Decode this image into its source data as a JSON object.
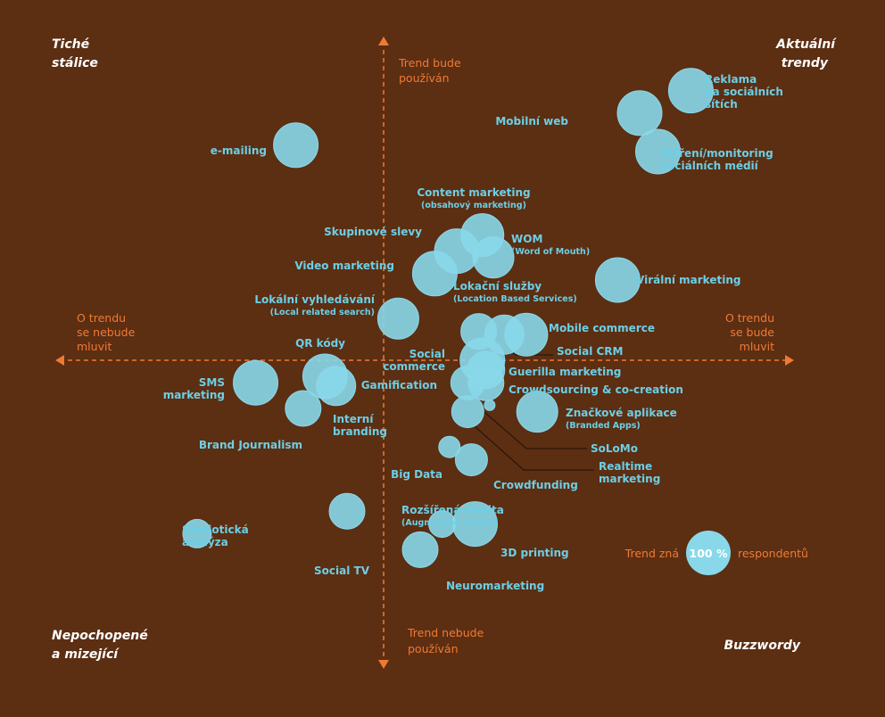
{
  "colors": {
    "background": "#5c2e12",
    "bubble": "#88d8ea",
    "label": "#6ccfe6",
    "axis": "#f07a34",
    "corner": "#ffffff"
  },
  "chart_data": {
    "type": "scatter",
    "title": "",
    "xlabel": "",
    "ylabel": "",
    "axes": {
      "top": [
        "Trend bude",
        "používán"
      ],
      "bottom": [
        "Trend nebude",
        "používán"
      ],
      "left": [
        "O trendu",
        "se nebude",
        "mluvit"
      ],
      "right": [
        "O trendu",
        "se bude",
        "mluvit"
      ]
    },
    "corners": {
      "top_left": [
        "Tiché",
        "stálice"
      ],
      "top_right": [
        "Aktuální",
        "trendy"
      ],
      "bottom_left": [
        "Nepochopené",
        "a mizející"
      ],
      "bottom_right": [
        "Buzzwordy"
      ]
    },
    "legend": {
      "prefix": "Trend zná",
      "value": "100 %",
      "suffix": "respondentů"
    },
    "points": [
      {
        "lines": [
          "Reklama",
          "na sociálních",
          "sítích"
        ],
        "x": 0.84,
        "y": 0.84
      },
      {
        "lines": [
          "Mobilní web"
        ],
        "x": 0.7,
        "y": 0.77
      },
      {
        "lines": [
          "Měření/monitoring",
          "sociálních médií"
        ],
        "x": 0.75,
        "y": 0.65
      },
      {
        "lines": [
          "e-mailing"
        ],
        "x": -0.24,
        "y": 0.67
      },
      {
        "lines": [
          "Content marketing"
        ],
        "sub": "(obsahový marketing)",
        "x": 0.27,
        "y": 0.39
      },
      {
        "lines": [
          "WOM"
        ],
        "sub": "(Word of Mouth)",
        "x": 0.3,
        "y": 0.32
      },
      {
        "lines": [
          "Skupinové slevy"
        ],
        "x": 0.2,
        "y": 0.34
      },
      {
        "lines": [
          "Video marketing"
        ],
        "x": 0.14,
        "y": 0.27
      },
      {
        "lines": [
          "Virální marketing"
        ],
        "x": 0.64,
        "y": 0.25
      },
      {
        "lines": [
          "Lokální vyhledávání"
        ],
        "sub": "(Local related search)",
        "x": 0.04,
        "y": 0.13
      },
      {
        "lines": [
          "Lokační služby"
        ],
        "sub": "(Location Based Services)",
        "x": 0.26,
        "y": 0.09
      },
      {
        "lines": [
          "Mobile commerce"
        ],
        "x": 0.39,
        "y": 0.08
      },
      {
        "lines": [
          "Social CRM"
        ],
        "x": 0.33,
        "y": 0.08
      },
      {
        "lines": [
          "Social",
          "commerce"
        ],
        "x": 0.27,
        "y": 0.0
      },
      {
        "lines": [
          "Guerilla marketing"
        ],
        "x": 0.28,
        "y": -0.03
      },
      {
        "lines": [
          "Crowdsourcing & co-creation"
        ],
        "x": 0.28,
        "y": -0.07
      },
      {
        "lines": [
          "QR kódy"
        ],
        "x": -0.16,
        "y": -0.05
      },
      {
        "lines": [
          "SMS",
          "marketing"
        ],
        "x": -0.35,
        "y": -0.07
      },
      {
        "lines": [
          "Gamification"
        ],
        "x": 0.23,
        "y": -0.07
      },
      {
        "lines": [
          "Interní",
          "branding"
        ],
        "x": -0.13,
        "y": -0.08
      },
      {
        "lines": [
          "Značkové aplikace"
        ],
        "sub": "(Branded Apps)",
        "x": 0.42,
        "y": -0.16
      },
      {
        "lines": [
          "SoLoMo"
        ],
        "x": 0.29,
        "y": -0.14
      },
      {
        "lines": [
          "Realtime",
          "marketing"
        ],
        "x": 0.23,
        "y": -0.16
      },
      {
        "lines": [
          "Brand Journalism"
        ],
        "x": -0.22,
        "y": -0.15
      },
      {
        "lines": [
          "Big Data"
        ],
        "x": 0.18,
        "y": -0.27
      },
      {
        "lines": [
          "Crowdfunding"
        ],
        "x": 0.24,
        "y": -0.31
      },
      {
        "lines": [
          "Rozšířená realita"
        ],
        "sub": "(Augmented reality)",
        "x": 0.16,
        "y": -0.51
      },
      {
        "lines": [
          "3D printing"
        ],
        "x": 0.25,
        "y": -0.51
      },
      {
        "lines": [
          "Neuromarketing"
        ],
        "x": 0.1,
        "y": -0.59
      },
      {
        "lines": [
          "Social TV"
        ],
        "x": -0.1,
        "y": -0.47
      },
      {
        "lines": [
          "Sémiotická",
          "analýza"
        ],
        "x": -0.51,
        "y": -0.54
      }
    ]
  }
}
